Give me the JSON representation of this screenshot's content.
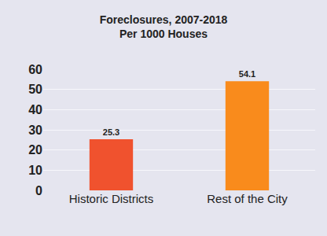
{
  "chart_data": {
    "type": "bar",
    "title": "Foreclosures, 2007-2018",
    "subtitle": "Per 1000 Houses",
    "categories": [
      "Historic Districts",
      "Rest of the City"
    ],
    "values": [
      25.3,
      54.1
    ],
    "colors": [
      "#f0522e",
      "#f98b1c"
    ],
    "ylim": [
      0,
      60
    ],
    "yticks": [
      0,
      10,
      20,
      30,
      40,
      50,
      60
    ],
    "grid": true,
    "data_labels": true
  }
}
